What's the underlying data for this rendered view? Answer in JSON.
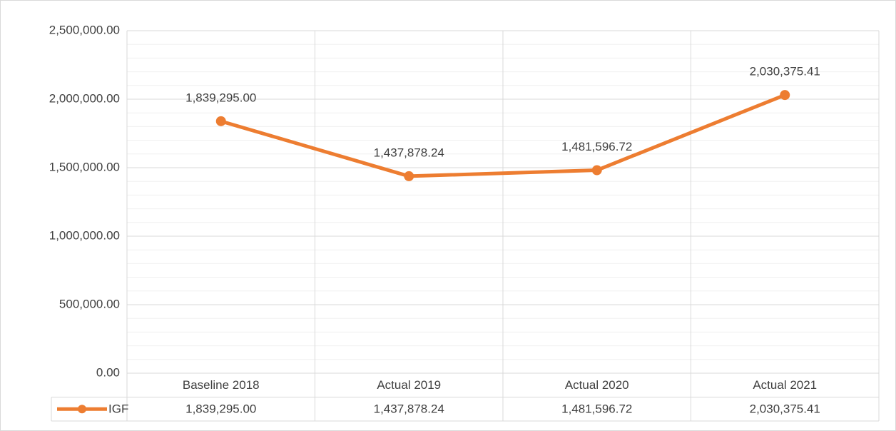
{
  "chart_data": {
    "type": "line",
    "categories": [
      "Baseline 2018",
      "Actual 2019",
      "Actual 2020",
      "Actual 2021"
    ],
    "series": [
      {
        "name": "IGF",
        "color": "#ed7d31",
        "values": [
          1839295.0,
          1437878.24,
          1481596.72,
          2030375.41
        ],
        "value_labels": [
          "1,839,295.00",
          "1,437,878.24",
          "1,481,596.72",
          "2,030,375.41"
        ]
      }
    ],
    "ylim": [
      0,
      2500000
    ],
    "yticks": [
      {
        "value": 0,
        "label": "0.00"
      },
      {
        "value": 500000,
        "label": "500,000.00"
      },
      {
        "value": 1000000,
        "label": "1,000,000.00"
      },
      {
        "value": 1500000,
        "label": "1,500,000.00"
      },
      {
        "value": 2000000,
        "label": "2,000,000.00"
      },
      {
        "value": 2500000,
        "label": "2,500,000.00"
      }
    ],
    "yminorticks": [
      100000,
      200000,
      300000,
      400000,
      600000,
      700000,
      800000,
      900000,
      1100000,
      1200000,
      1300000,
      1400000,
      1600000,
      1700000,
      1800000,
      1900000,
      2100000,
      2200000,
      2300000,
      2400000
    ],
    "grid": true,
    "data_table": true
  }
}
